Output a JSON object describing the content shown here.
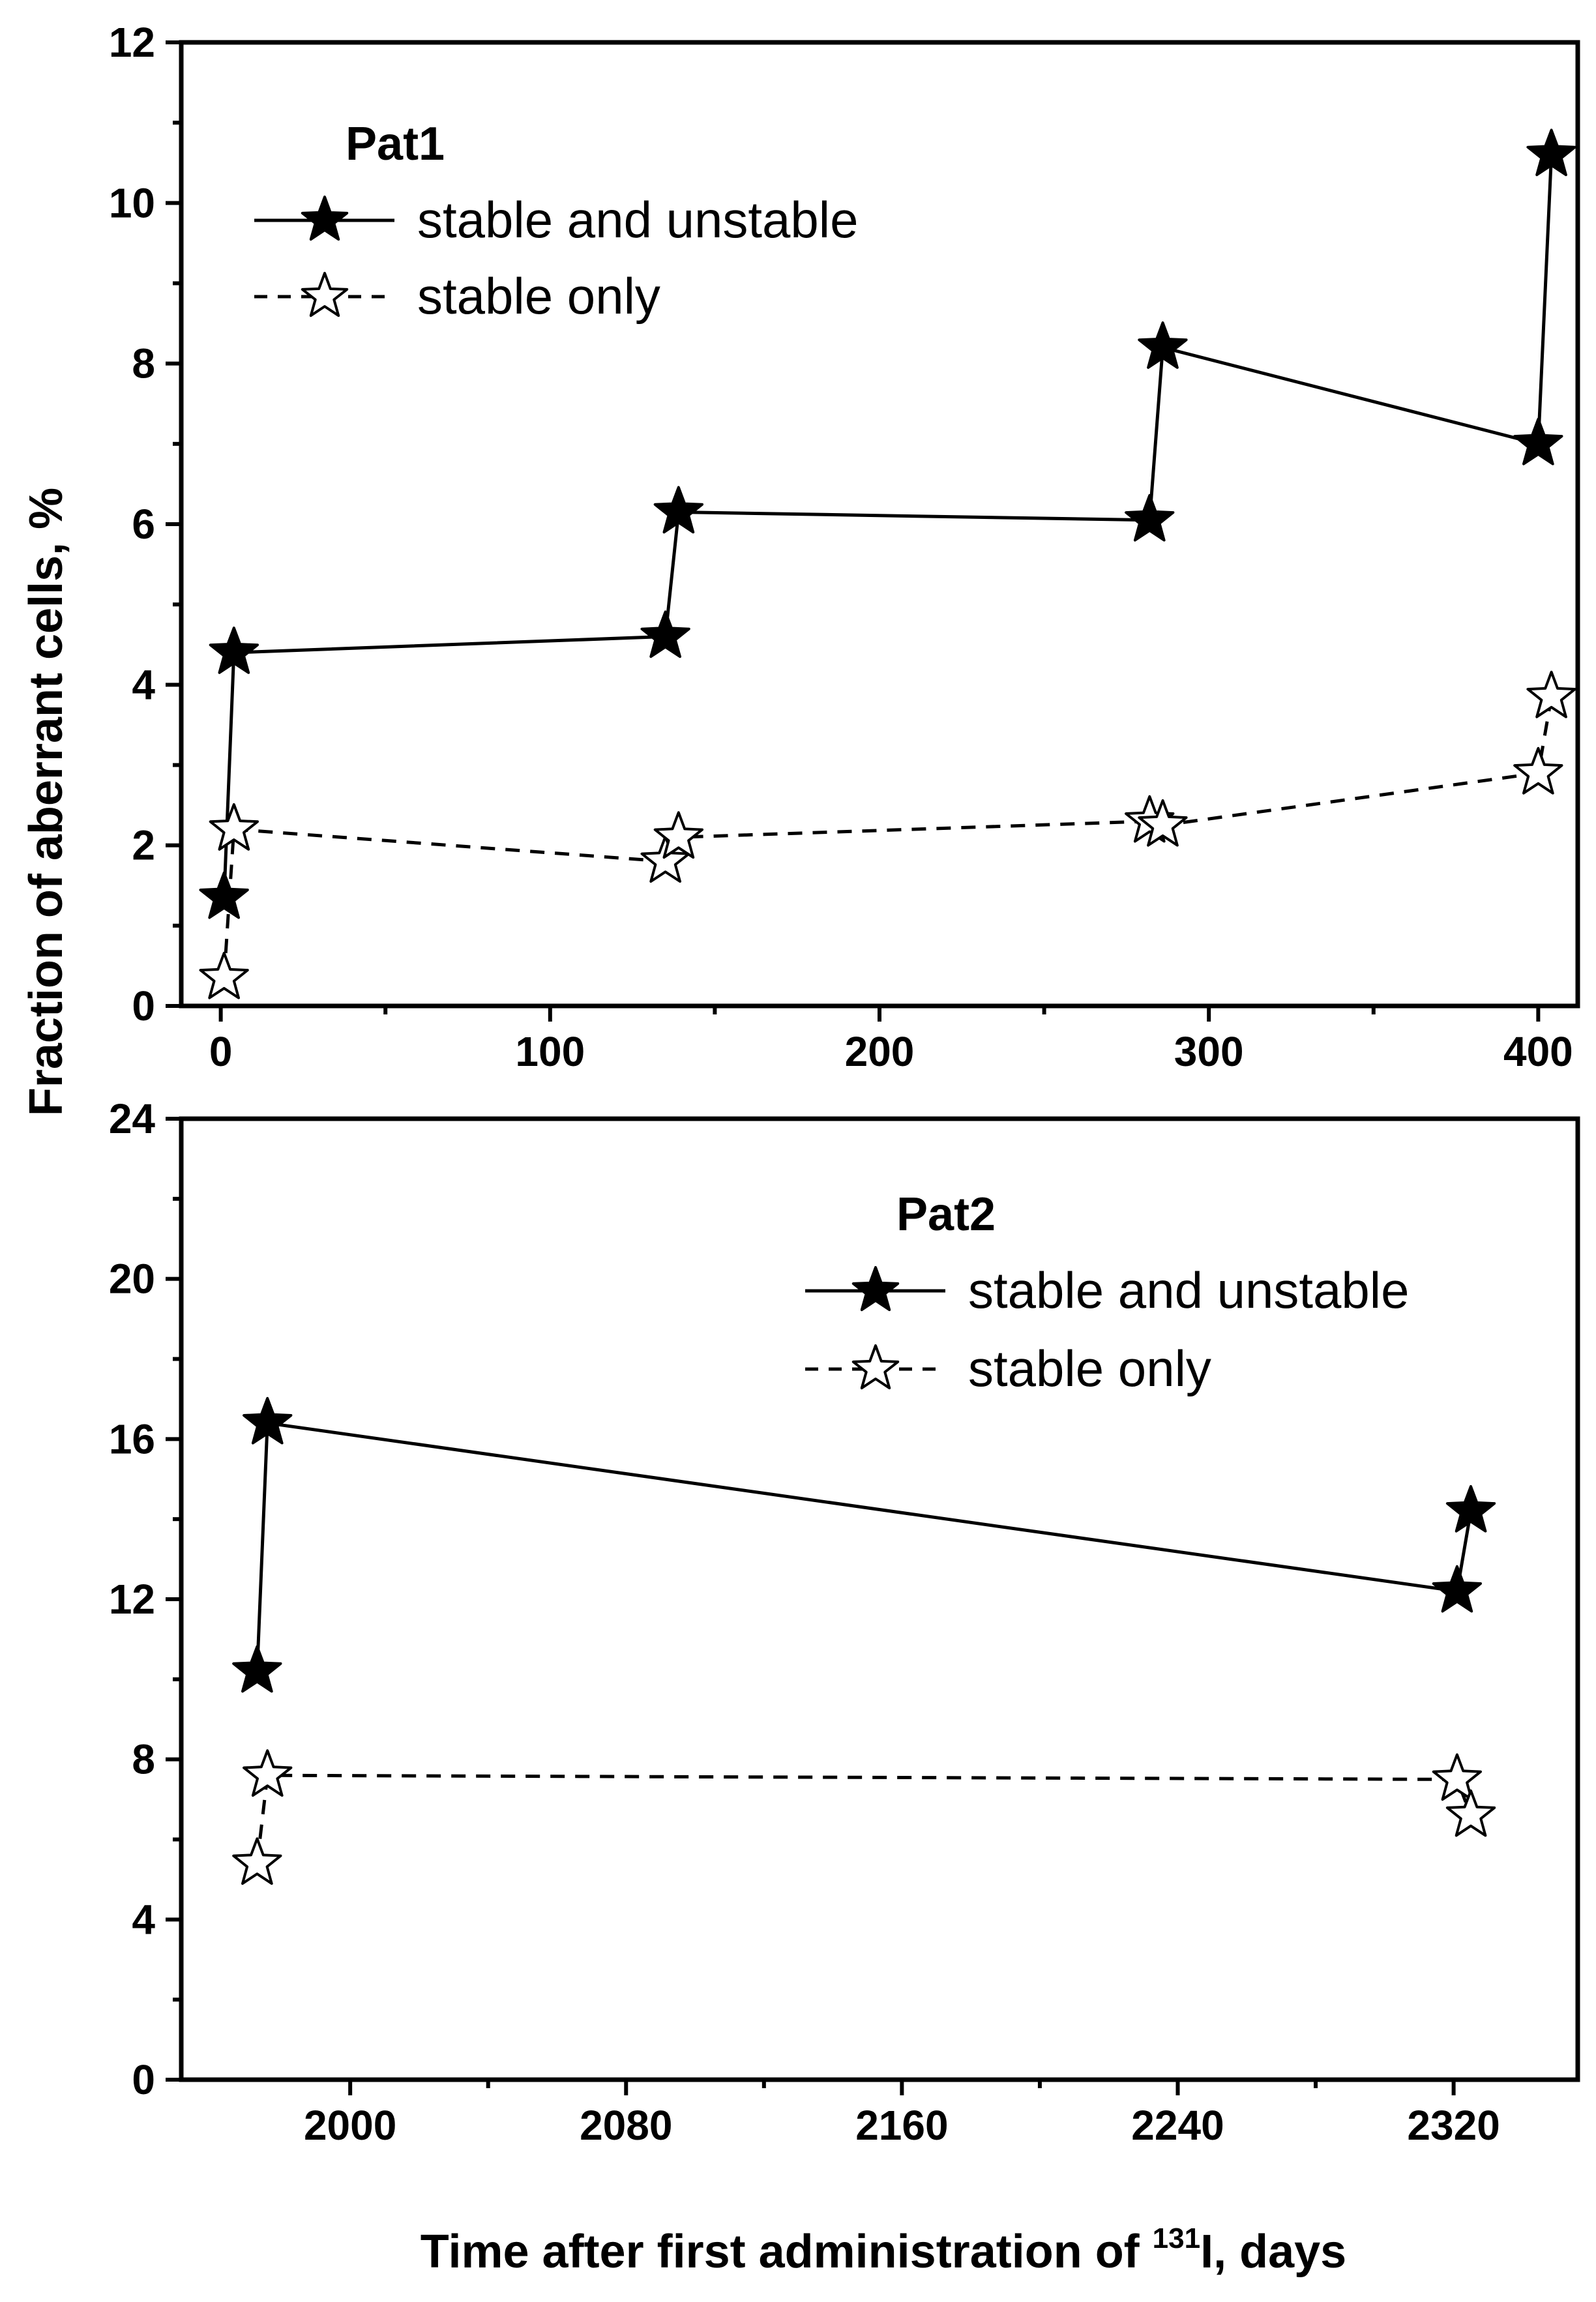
{
  "figure": {
    "ylabel": "Fraction of aberrant cells, %",
    "xlabel_prefix": "Time after first administration of ",
    "xlabel_superscript": "131",
    "xlabel_suffix": "I, days"
  },
  "chart_data": [
    {
      "type": "line",
      "title": "Pat1",
      "xlim": [
        -12,
        412
      ],
      "ylim": [
        0,
        12
      ],
      "x_ticks": [
        0,
        100,
        200,
        300,
        400
      ],
      "x_minor_ticks": [
        50,
        150,
        250,
        350
      ],
      "y_ticks": [
        0,
        2,
        4,
        6,
        8,
        10,
        12
      ],
      "y_minor_ticks": [
        1,
        3,
        5,
        7,
        9,
        11
      ],
      "series": [
        {
          "name": "stable and unstable",
          "style": "solid",
          "marker": "filled-star",
          "x": [
            1,
            4,
            135,
            139,
            282,
            286,
            400,
            404
          ],
          "y": [
            1.35,
            4.4,
            4.6,
            6.15,
            6.05,
            8.2,
            7.0,
            10.6
          ]
        },
        {
          "name": "stable only",
          "style": "dashed",
          "marker": "open-star",
          "x": [
            1,
            4,
            135,
            139,
            282,
            286,
            400,
            404
          ],
          "y": [
            0.35,
            2.2,
            1.8,
            2.1,
            2.3,
            2.25,
            2.9,
            3.85
          ]
        }
      ]
    },
    {
      "type": "line",
      "title": "Pat2",
      "xlim": [
        1951,
        2356
      ],
      "ylim": [
        0,
        24
      ],
      "x_ticks": [
        2000,
        2080,
        2160,
        2240,
        2320
      ],
      "x_minor_ticks": [
        2040,
        2120,
        2200,
        2280
      ],
      "y_ticks": [
        0,
        4,
        8,
        12,
        16,
        20,
        24
      ],
      "y_minor_ticks": [
        2,
        6,
        10,
        14,
        18,
        22
      ],
      "series": [
        {
          "name": "stable and unstable",
          "style": "solid",
          "marker": "filled-star",
          "x": [
            1973,
            1976,
            2321,
            2325
          ],
          "y": [
            10.2,
            16.4,
            12.2,
            14.2
          ]
        },
        {
          "name": "stable only",
          "style": "dashed",
          "marker": "open-star",
          "x": [
            1973,
            1976,
            2321,
            2325
          ],
          "y": [
            5.4,
            7.6,
            7.5,
            6.6
          ]
        }
      ]
    }
  ]
}
